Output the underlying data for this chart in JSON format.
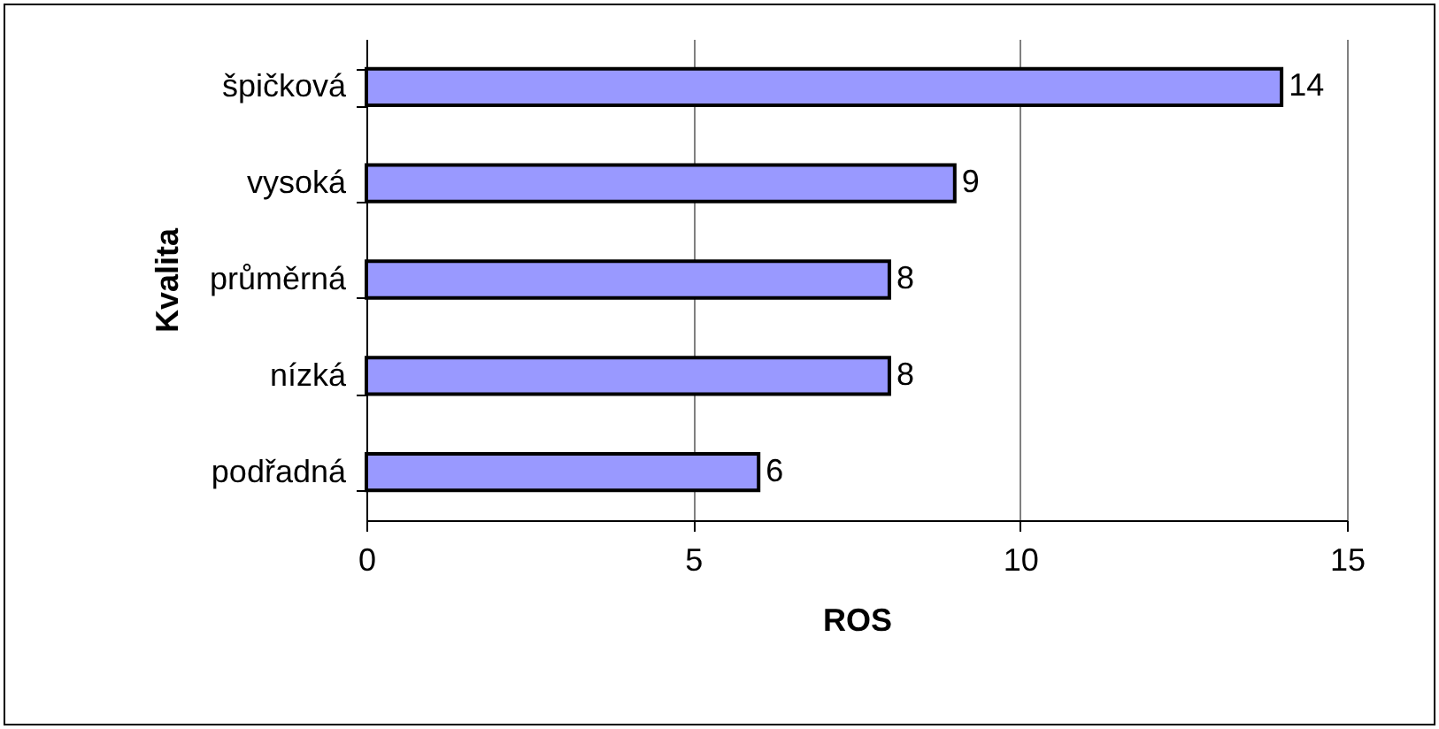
{
  "chart_data": {
    "type": "bar",
    "orientation": "horizontal",
    "xlabel": "ROS",
    "ylabel": "Kvalita",
    "categories": [
      "špičková",
      "vysoká",
      "průměrná",
      "nízká",
      "podřadná"
    ],
    "values": [
      14,
      9,
      8,
      8,
      6
    ],
    "color": "#9999ff",
    "xlim": [
      0,
      15
    ],
    "xticks": [
      0,
      5,
      10,
      15
    ],
    "grid": "x",
    "data_labels": true
  }
}
